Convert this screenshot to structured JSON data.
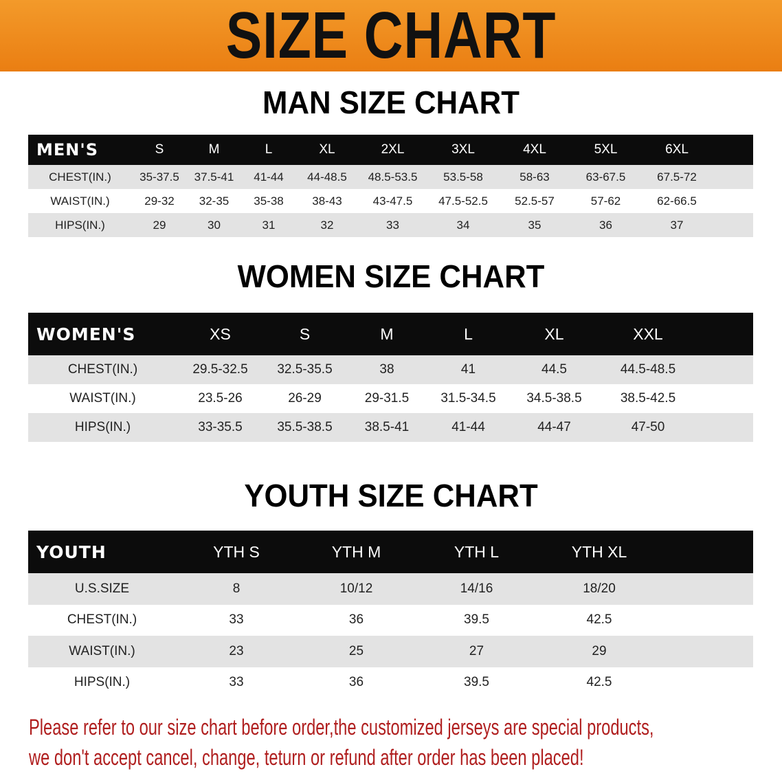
{
  "banner": {
    "title": "SIZE CHART",
    "color": "#ee8419"
  },
  "men": {
    "title": "MAN SIZE CHART",
    "header": [
      "MEN'S",
      "S",
      "M",
      "L",
      "XL",
      "2XL",
      "3XL",
      "4XL",
      "5XL",
      "6XL"
    ],
    "rows": [
      [
        "CHEST(IN.)",
        "35-37.5",
        "37.5-41",
        "41-44",
        "44-48.5",
        "48.5-53.5",
        "53.5-58",
        "58-63",
        "63-67.5",
        "67.5-72"
      ],
      [
        "WAIST(IN.)",
        "29-32",
        "32-35",
        "35-38",
        "38-43",
        "43-47.5",
        "47.5-52.5",
        "52.5-57",
        "57-62",
        "62-66.5"
      ],
      [
        "HIPS(IN.)",
        "29",
        "30",
        "31",
        "32",
        "33",
        "34",
        "35",
        "36",
        "37"
      ]
    ]
  },
  "women": {
    "title": "WOMEN SIZE CHART",
    "header": [
      "WOMEN'S",
      "XS",
      "S",
      "M",
      "L",
      "XL",
      "XXL"
    ],
    "rows": [
      [
        "CHEST(IN.)",
        "29.5-32.5",
        "32.5-35.5",
        "38",
        "41",
        "44.5",
        "44.5-48.5"
      ],
      [
        "WAIST(IN.)",
        "23.5-26",
        "26-29",
        "29-31.5",
        "31.5-34.5",
        "34.5-38.5",
        "38.5-42.5"
      ],
      [
        "HIPS(IN.)",
        "33-35.5",
        "35.5-38.5",
        "38.5-41",
        "41-44",
        "44-47",
        "47-50"
      ]
    ]
  },
  "youth": {
    "title": "YOUTH SIZE CHART",
    "header": [
      "YOUTH",
      "YTH S",
      "YTH M",
      "YTH L",
      "YTH XL"
    ],
    "rows": [
      [
        "U.S.SIZE",
        "8",
        "10/12",
        "14/16",
        "18/20"
      ],
      [
        "CHEST(IN.)",
        "33",
        "36",
        "39.5",
        "42.5"
      ],
      [
        "WAIST(IN.)",
        "23",
        "25",
        "27",
        "29"
      ],
      [
        "HIPS(IN.)",
        "33",
        "36",
        "39.5",
        "42.5"
      ]
    ]
  },
  "notice": {
    "line1": "Please refer to our size chart before order,the customized jerseys are special products,",
    "line2": "we don't accept cancel, change, teturn or refund after order has been placed!",
    "color": "#b01f1f"
  }
}
